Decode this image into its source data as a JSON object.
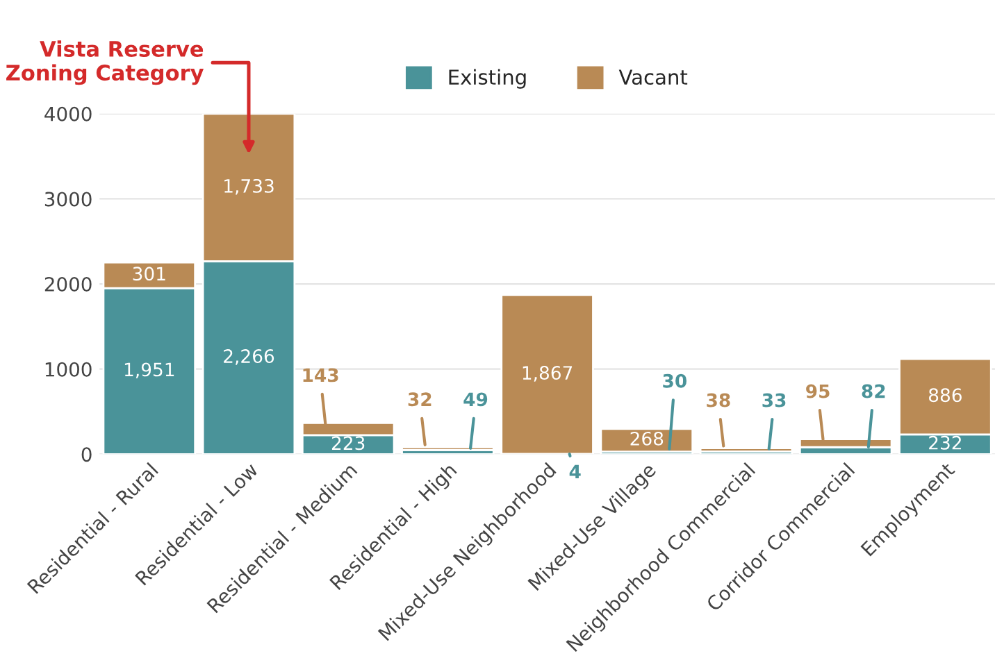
{
  "chart_data": {
    "type": "bar",
    "stacked": true,
    "categories": [
      "Residential - Rural",
      "Residential - Low",
      "Residential - Medium",
      "Residential - High",
      "Mixed-Use Neighborhood",
      "Mixed-Use Village",
      "Neighborhood Commercial",
      "Corridor Commercial",
      "Employment"
    ],
    "series": [
      {
        "name": "Existing",
        "color": "#4a9399",
        "values": [
          1951,
          2266,
          223,
          49,
          4,
          30,
          33,
          82,
          232
        ],
        "value_labels": [
          "1,951",
          "2,266",
          "223",
          "49",
          "4",
          "30",
          "33",
          "82",
          "232"
        ]
      },
      {
        "name": "Vacant",
        "color": "#b98a55",
        "values": [
          301,
          1733,
          143,
          32,
          1867,
          268,
          38,
          95,
          886
        ],
        "value_labels": [
          "301",
          "1,733",
          "143",
          "32",
          "1,867",
          "268",
          "38",
          "95",
          "886"
        ]
      }
    ],
    "ylim": [
      0,
      4000
    ],
    "yticks": [
      0,
      1000,
      2000,
      3000,
      4000
    ],
    "grid": "y",
    "legend": "top",
    "annotations": [
      "Vista Reserve\nZoning Category"
    ]
  }
}
